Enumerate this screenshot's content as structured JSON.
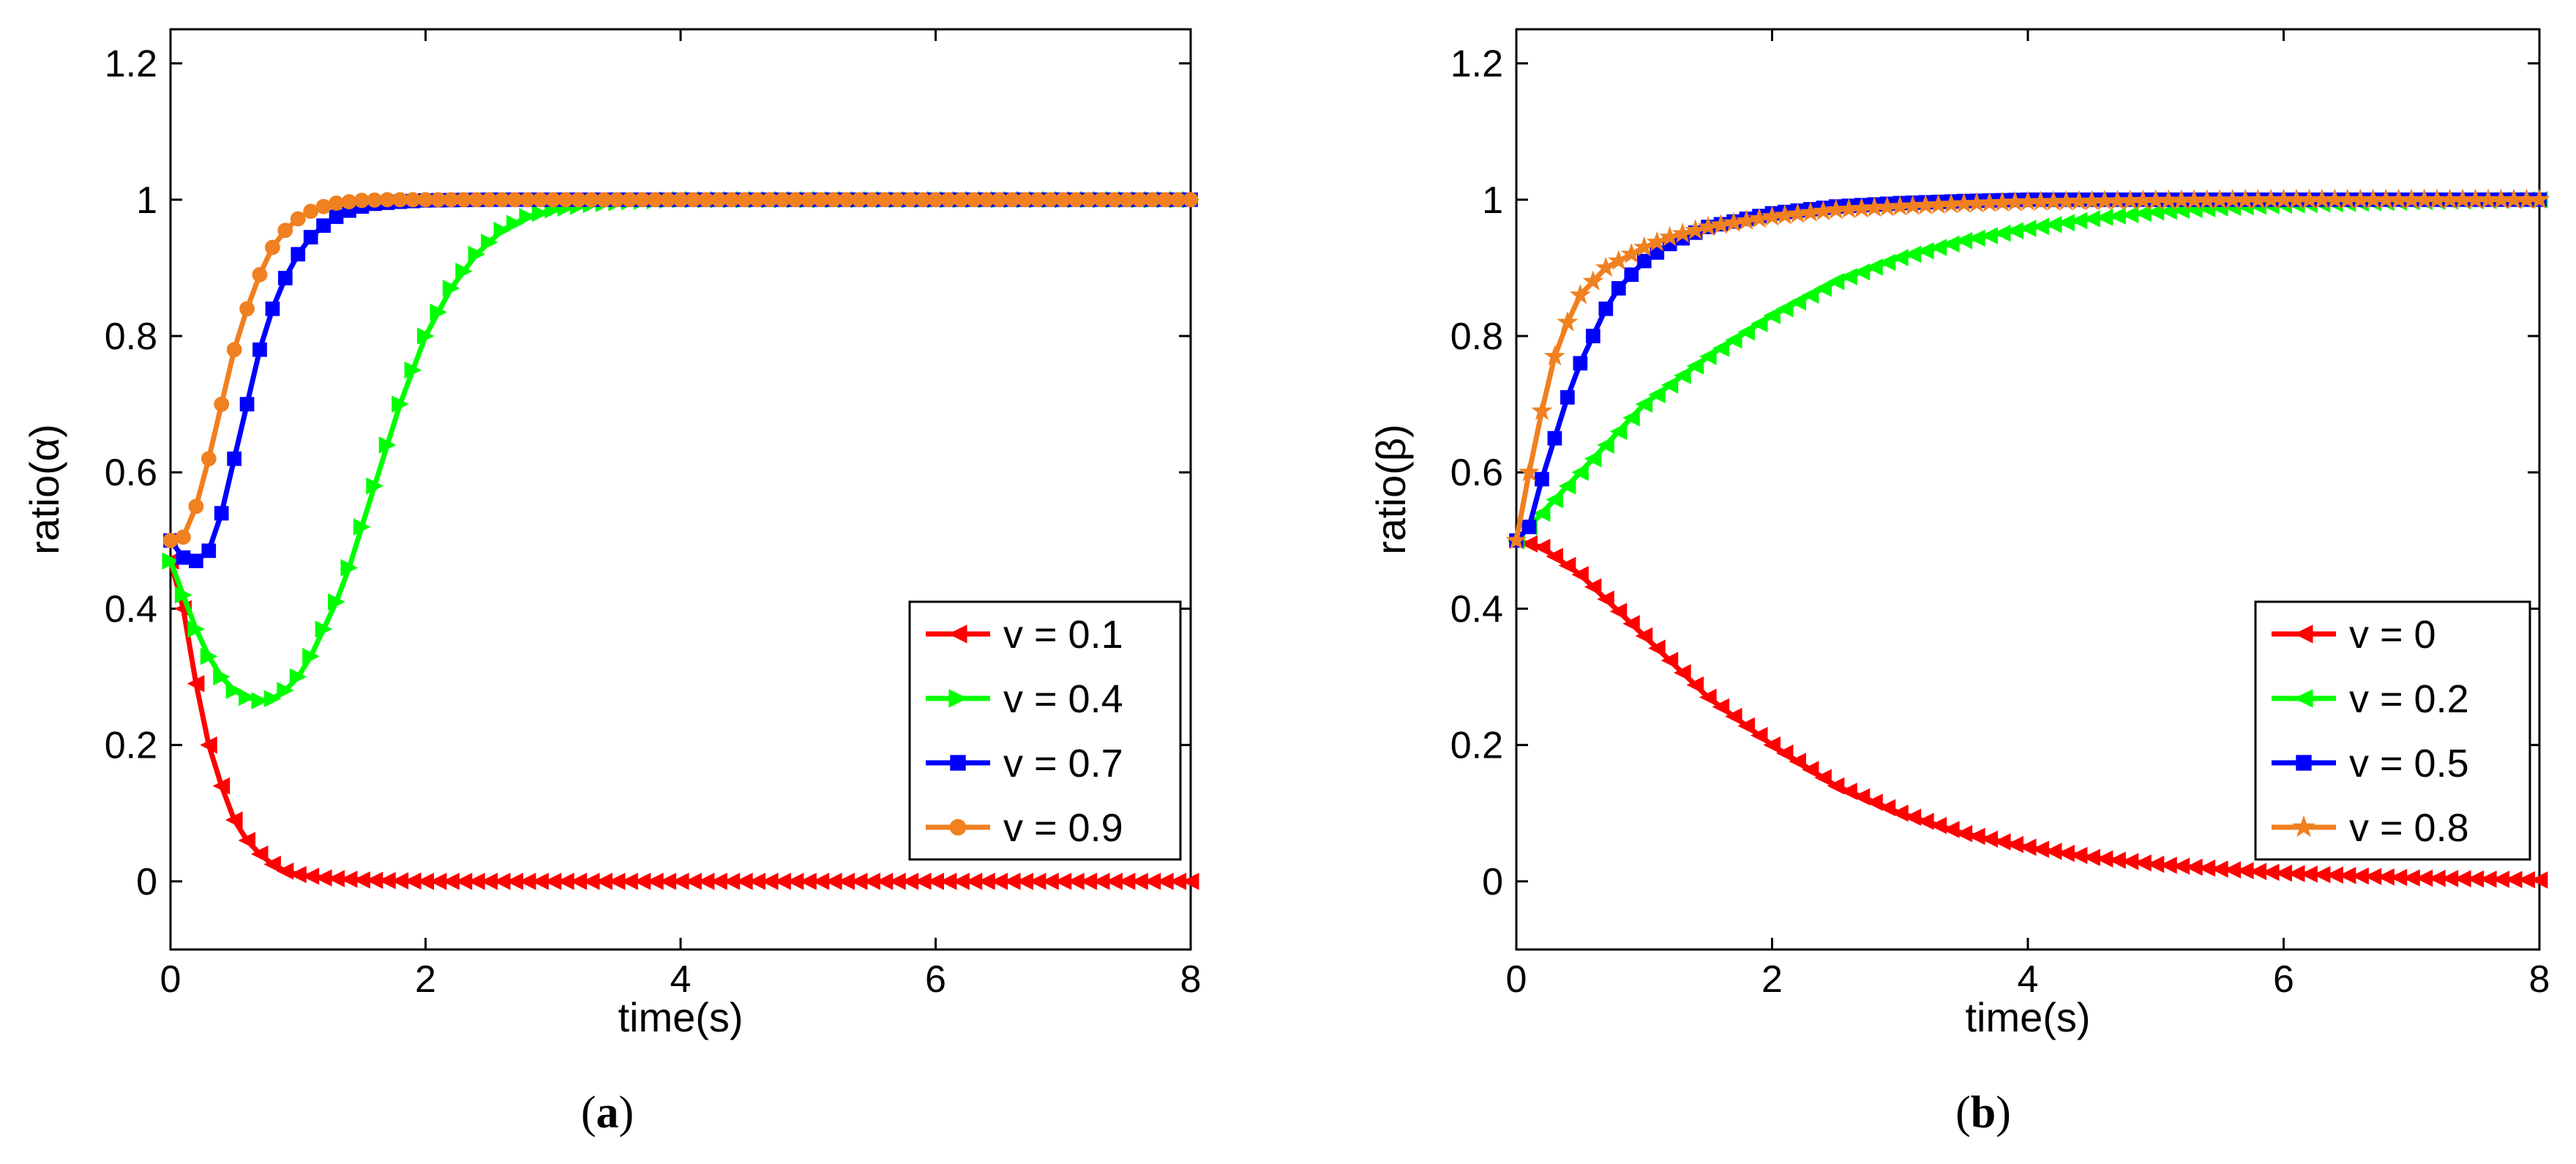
{
  "captions": [
    "(a)",
    "(b)"
  ],
  "colors": {
    "red": "#ff0000",
    "green": "#00ff00",
    "blue": "#0000ff",
    "orange": "#f08020"
  },
  "chart_data": [
    {
      "type": "line",
      "xlabel": "time(s)",
      "ylabel": "ratio(α)",
      "xlim": [
        0,
        8
      ],
      "ylim": [
        -0.1,
        1.25
      ],
      "xticks": [
        0,
        2,
        4,
        6,
        8
      ],
      "yticks": [
        0,
        0.2,
        0.4,
        0.6,
        0.8,
        1,
        1.2
      ],
      "xtick_labels": [
        "0",
        "2",
        "4",
        "6",
        "8"
      ],
      "ytick_labels": [
        "0",
        "0.2",
        "0.4",
        "0.6",
        "0.8",
        "1",
        "1.2"
      ],
      "legend_position": "bottom-right",
      "series": [
        {
          "name": "v = 0.1",
          "color": "#ff0000",
          "marker": "triangle-left",
          "step": 0.1,
          "x": [
            0,
            0.1,
            0.2,
            0.3,
            0.4,
            0.5,
            0.6,
            0.7,
            0.8,
            0.9,
            1.0,
            1.2,
            1.5,
            2,
            3,
            4,
            6,
            8
          ],
          "y": [
            0.47,
            0.4,
            0.29,
            0.2,
            0.14,
            0.09,
            0.06,
            0.04,
            0.025,
            0.015,
            0.01,
            0.005,
            0.002,
            0,
            0,
            0,
            0,
            0
          ]
        },
        {
          "name": "v = 0.4",
          "color": "#00ff00",
          "marker": "triangle-right",
          "step": 0.1,
          "x": [
            0,
            0.1,
            0.2,
            0.3,
            0.4,
            0.5,
            0.6,
            0.7,
            0.8,
            0.9,
            1.0,
            1.1,
            1.2,
            1.3,
            1.4,
            1.5,
            1.6,
            1.7,
            1.8,
            1.9,
            2.0,
            2.2,
            2.4,
            2.6,
            2.8,
            3.0,
            3.3,
            3.6,
            4.0,
            5,
            6,
            8
          ],
          "y": [
            0.47,
            0.42,
            0.37,
            0.33,
            0.3,
            0.28,
            0.27,
            0.265,
            0.268,
            0.28,
            0.3,
            0.33,
            0.37,
            0.41,
            0.46,
            0.52,
            0.58,
            0.64,
            0.7,
            0.75,
            0.8,
            0.87,
            0.92,
            0.955,
            0.975,
            0.985,
            0.993,
            0.997,
            1,
            1,
            1,
            1
          ]
        },
        {
          "name": "v = 0.7",
          "color": "#0000ff",
          "marker": "square",
          "step": 0.1,
          "x": [
            0,
            0.1,
            0.2,
            0.3,
            0.4,
            0.5,
            0.6,
            0.7,
            0.8,
            0.9,
            1.0,
            1.1,
            1.2,
            1.3,
            1.4,
            1.5,
            1.6,
            1.8,
            2.0,
            2.5,
            3,
            4,
            6,
            8
          ],
          "y": [
            0.5,
            0.475,
            0.47,
            0.485,
            0.54,
            0.62,
            0.7,
            0.78,
            0.84,
            0.885,
            0.92,
            0.945,
            0.962,
            0.975,
            0.984,
            0.99,
            0.994,
            0.997,
            0.999,
            1,
            1,
            1,
            1,
            1
          ]
        },
        {
          "name": "v = 0.9",
          "color": "#f08020",
          "marker": "circle",
          "step": 0.1,
          "x": [
            0,
            0.1,
            0.2,
            0.3,
            0.4,
            0.5,
            0.6,
            0.7,
            0.8,
            0.9,
            1.0,
            1.1,
            1.2,
            1.3,
            1.4,
            1.5,
            1.7,
            2,
            3,
            4,
            6,
            8
          ],
          "y": [
            0.5,
            0.505,
            0.55,
            0.62,
            0.7,
            0.78,
            0.84,
            0.89,
            0.93,
            0.955,
            0.972,
            0.983,
            0.99,
            0.995,
            0.997,
            0.999,
            1,
            1,
            1,
            1,
            1,
            1
          ]
        }
      ]
    },
    {
      "type": "line",
      "xlabel": "time(s)",
      "ylabel": "ratio(β)",
      "xlim": [
        0,
        8
      ],
      "ylim": [
        -0.1,
        1.25
      ],
      "xticks": [
        0,
        2,
        4,
        6,
        8
      ],
      "yticks": [
        0,
        0.2,
        0.4,
        0.6,
        0.8,
        1,
        1.2
      ],
      "xtick_labels": [
        "0",
        "2",
        "4",
        "6",
        "8"
      ],
      "ytick_labels": [
        "0",
        "0.2",
        "0.4",
        "0.6",
        "0.8",
        "1",
        "1.2"
      ],
      "legend_position": "bottom-right",
      "series": [
        {
          "name": "v = 0",
          "color": "#ff0000",
          "marker": "triangle-left",
          "step": 0.1,
          "x": [
            0,
            0.2,
            0.5,
            1.0,
            1.5,
            2.0,
            2.5,
            3.0,
            3.5,
            4.0,
            4.5,
            5.0,
            5.5,
            6.0,
            7.0,
            8.0
          ],
          "y": [
            0.5,
            0.49,
            0.45,
            0.36,
            0.27,
            0.2,
            0.14,
            0.1,
            0.07,
            0.05,
            0.035,
            0.025,
            0.018,
            0.012,
            0.005,
            0.002
          ]
        },
        {
          "name": "v = 0.2",
          "color": "#00ff00",
          "marker": "triangle-left",
          "step": 0.1,
          "x": [
            0,
            0.1,
            0.3,
            0.5,
            1.0,
            1.5,
            2.0,
            2.5,
            3.0,
            3.5,
            4.0,
            4.5,
            5.0,
            5.5,
            6.0,
            7.0,
            8.0
          ],
          "y": [
            0.5,
            0.52,
            0.56,
            0.6,
            0.7,
            0.77,
            0.83,
            0.88,
            0.915,
            0.94,
            0.958,
            0.972,
            0.982,
            0.988,
            0.992,
            0.997,
            1
          ]
        },
        {
          "name": "v = 0.5",
          "color": "#0000ff",
          "marker": "square",
          "step": 0.1,
          "x": [
            0,
            0.1,
            0.2,
            0.3,
            0.4,
            0.5,
            0.6,
            0.7,
            0.8,
            0.9,
            1.0,
            1.2,
            1.5,
            2.0,
            2.5,
            3.0,
            3.5,
            4.0,
            5.0,
            6.0,
            8.0
          ],
          "y": [
            0.5,
            0.52,
            0.59,
            0.65,
            0.71,
            0.76,
            0.8,
            0.84,
            0.87,
            0.89,
            0.91,
            0.935,
            0.96,
            0.98,
            0.99,
            0.995,
            0.998,
            1,
            1,
            1,
            1
          ]
        },
        {
          "name": "v = 0.8",
          "color": "#f08020",
          "marker": "star",
          "step": 0.1,
          "x": [
            0,
            0.1,
            0.2,
            0.3,
            0.4,
            0.5,
            0.6,
            0.7,
            0.8,
            0.9,
            1.0,
            1.2,
            1.5,
            2.0,
            2.5,
            3.0,
            3.5,
            4.0,
            5.0,
            6.0,
            8.0
          ],
          "y": [
            0.5,
            0.6,
            0.69,
            0.77,
            0.82,
            0.86,
            0.88,
            0.9,
            0.91,
            0.92,
            0.93,
            0.945,
            0.96,
            0.975,
            0.985,
            0.99,
            0.994,
            0.997,
            0.999,
            1,
            1
          ]
        }
      ]
    }
  ]
}
